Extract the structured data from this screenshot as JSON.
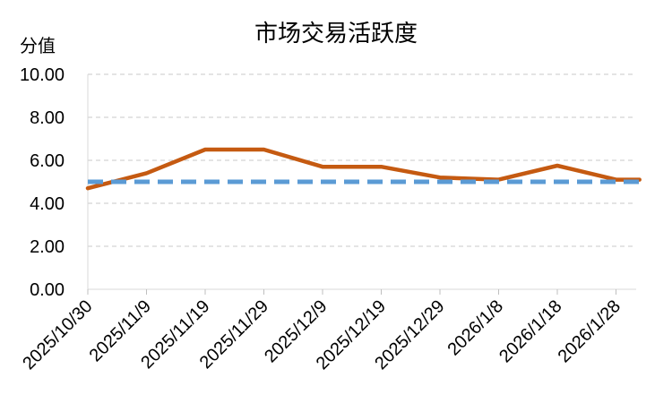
{
  "chart_data": {
    "type": "line",
    "title": "市场交易活跃度",
    "ylabel": "分值",
    "xlabel": "",
    "ylim": [
      0,
      10
    ],
    "yticks": [
      "0.00",
      "2.00",
      "4.00",
      "6.00",
      "8.00",
      "10.00"
    ],
    "xticks": [
      "2025/10/30",
      "2025/11/9",
      "2025/11/19",
      "2025/11/29",
      "2025/12/9",
      "2025/12/19",
      "2025/12/29",
      "2026/1/8",
      "2026/1/18",
      "2026/1/28"
    ],
    "grid": true,
    "legend": "none",
    "series": [
      {
        "style": "solid",
        "color": "#C55A11",
        "x": [
          "2025/10/30",
          "2025/11/9",
          "2025/11/19",
          "2025/11/29",
          "2025/12/9",
          "2025/12/19",
          "2025/12/29",
          "2026/1/8",
          "2026/1/18",
          "2026/1/28",
          "2026/2/1"
        ],
        "values": [
          4.7,
          5.4,
          6.5,
          6.5,
          5.7,
          5.7,
          5.2,
          5.1,
          5.75,
          5.1,
          5.1
        ]
      },
      {
        "style": "dashed",
        "color": "#5B9BD5",
        "x": [
          "2025/10/30",
          "2026/2/1"
        ],
        "values": [
          5.0,
          5.0
        ]
      }
    ]
  }
}
